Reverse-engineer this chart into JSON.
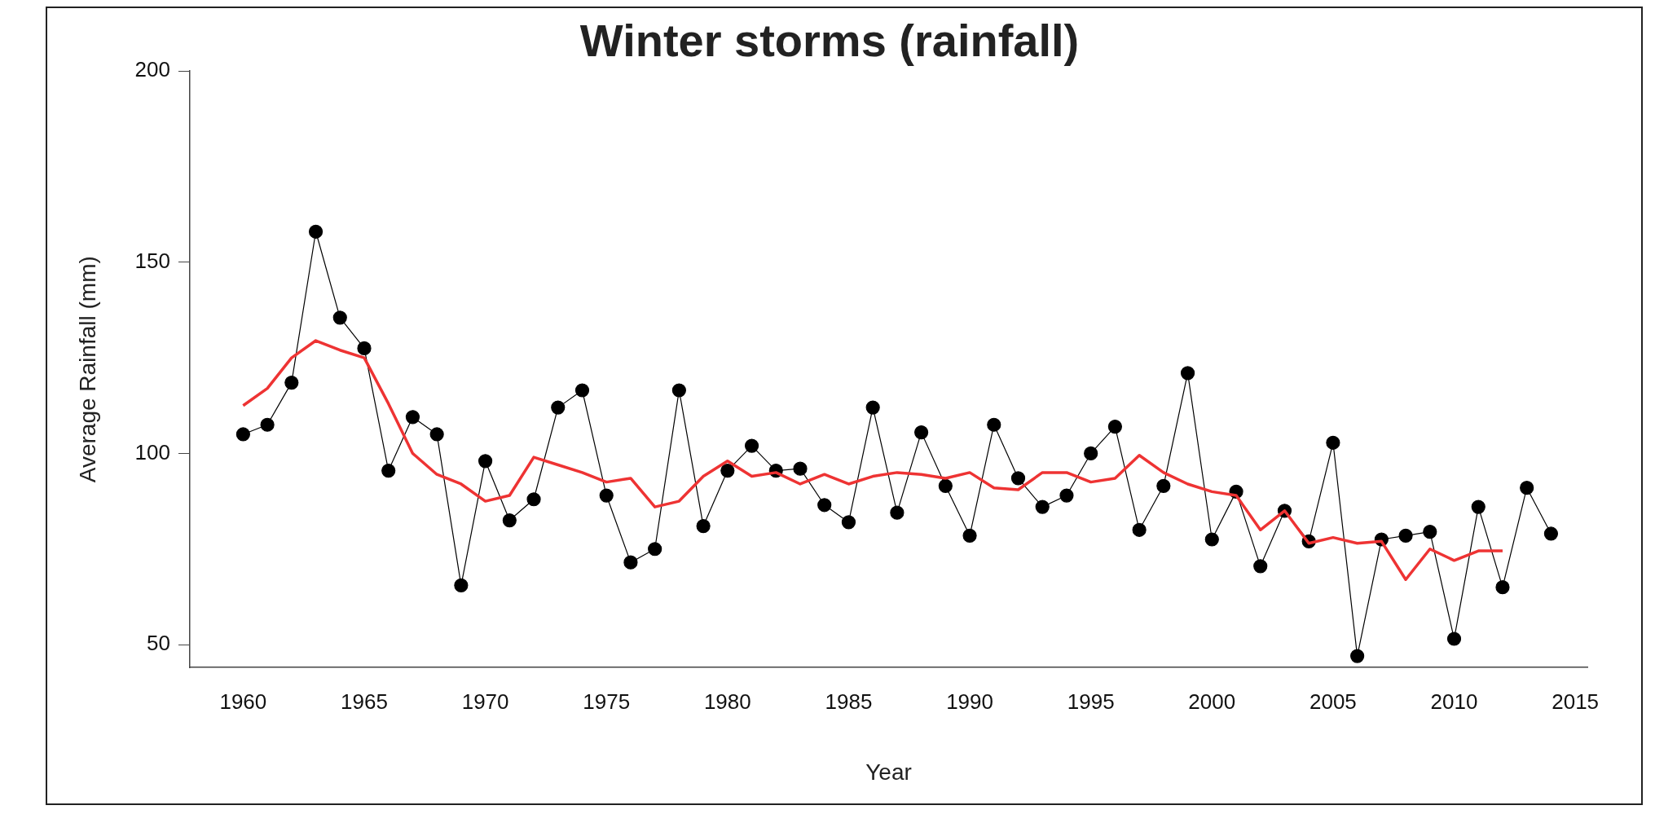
{
  "chart_data": {
    "type": "line",
    "title": "Winter storms (rainfall)",
    "xlabel": "Year",
    "ylabel": "Average Rainfall (mm)",
    "x": [
      1960,
      1961,
      1962,
      1963,
      1964,
      1965,
      1966,
      1967,
      1968,
      1969,
      1970,
      1971,
      1972,
      1973,
      1974,
      1975,
      1976,
      1977,
      1978,
      1979,
      1980,
      1981,
      1982,
      1983,
      1984,
      1985,
      1986,
      1987,
      1988,
      1989,
      1990,
      1991,
      1992,
      1993,
      1994,
      1995,
      1996,
      1997,
      1998,
      1999,
      2000,
      2001,
      2002,
      2003,
      2004,
      2005,
      2006,
      2007,
      2008,
      2009,
      2010,
      2011,
      2012,
      2013,
      2014
    ],
    "xlim": [
      1957.8,
      2015.5
    ],
    "xticks": [
      1960,
      1965,
      1970,
      1975,
      1980,
      1985,
      1990,
      1995,
      2000,
      2005,
      2010,
      2015
    ],
    "ylim": [
      44,
      200
    ],
    "yticks": [
      50,
      100,
      150,
      200
    ],
    "grid": false,
    "legend": false,
    "series": [
      {
        "color": "#000000",
        "marker": "circle",
        "values": [
          105,
          107.5,
          118.5,
          158,
          135.5,
          127.5,
          95.5,
          109.5,
          105,
          65.5,
          98,
          82.5,
          88,
          112,
          116.5,
          89,
          71.5,
          75,
          116.5,
          81,
          95.5,
          102,
          95.5,
          96,
          86.5,
          82,
          112,
          84.5,
          105.5,
          91.5,
          78.5,
          107.5,
          93.5,
          86,
          89,
          100,
          107,
          80,
          91.5,
          121,
          77.5,
          90,
          70.5,
          85,
          77,
          102.8,
          47,
          77.5,
          78.5,
          79.5,
          51.5,
          86,
          65,
          91,
          79
        ]
      },
      {
        "color": "#ee3333",
        "marker": "none",
        "x": [
          1960,
          1961,
          1962,
          1963,
          1964,
          1965,
          1966,
          1967,
          1968,
          1969,
          1970,
          1971,
          1972,
          1973,
          1974,
          1975,
          1976,
          1977,
          1978,
          1979,
          1980,
          1981,
          1982,
          1983,
          1984,
          1985,
          1986,
          1987,
          1988,
          1989,
          1990,
          1991,
          1992,
          1993,
          1994,
          1995,
          1996,
          1997,
          1998,
          1999,
          2000,
          2001,
          2002,
          2003,
          2004,
          2005,
          2006,
          2007,
          2008,
          2009,
          2010,
          2011,
          2012
        ],
        "values": [
          112.5,
          117,
          125,
          129.5,
          127,
          125,
          113,
          100,
          94.5,
          92,
          87.5,
          89,
          99,
          97,
          95,
          92.5,
          93.5,
          86,
          87.5,
          94,
          98,
          94,
          95,
          92,
          94.5,
          92,
          94,
          95,
          94.5,
          93.5,
          95,
          91,
          90.5,
          95,
          95,
          92.5,
          93.5,
          99.5,
          95,
          92,
          90,
          89,
          80,
          85,
          76.5,
          78,
          76.5,
          77,
          67,
          75,
          72,
          74.5,
          74.5
        ]
      }
    ]
  }
}
